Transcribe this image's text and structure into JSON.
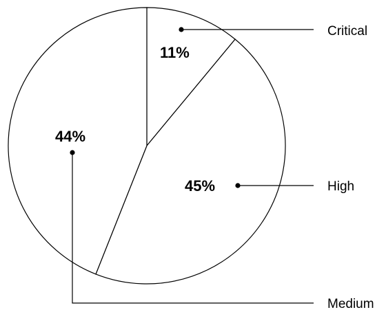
{
  "chart_data": {
    "type": "pie",
    "categories": [
      "Critical",
      "High",
      "Medium"
    ],
    "values": [
      11,
      45,
      44
    ],
    "labels": [
      "11%",
      "45%",
      "44%"
    ],
    "legend": "callout labels to the right"
  }
}
